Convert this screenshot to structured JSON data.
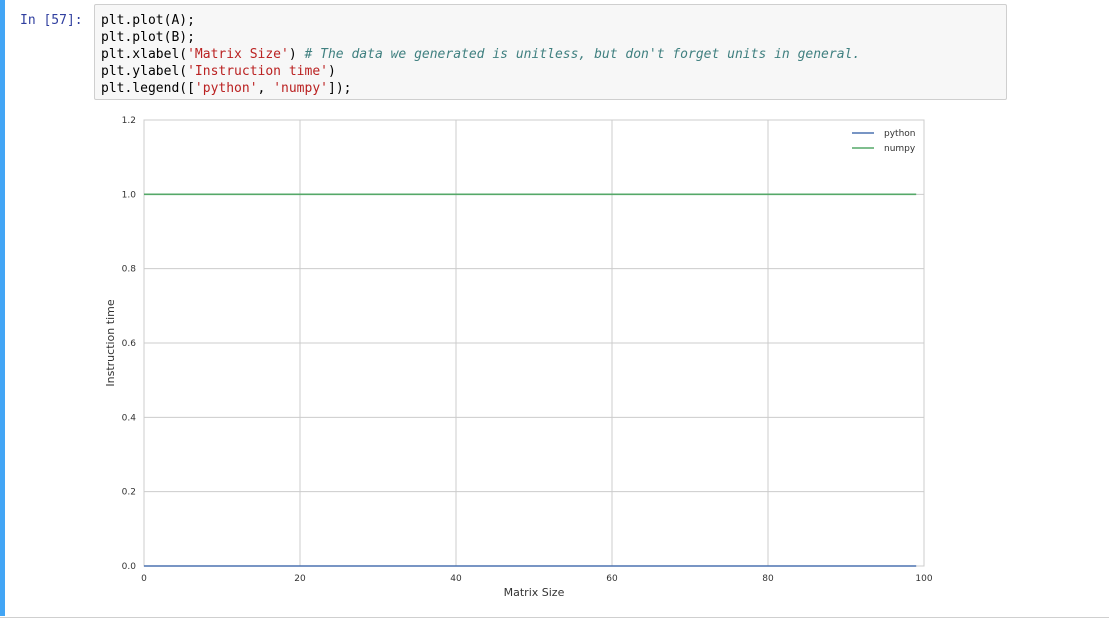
{
  "cell": {
    "prompt": "In [57]:",
    "code_lines": [
      [
        {
          "t": "plt.plot(A);",
          "k": "plain"
        }
      ],
      [
        {
          "t": "plt.plot(B);",
          "k": "plain"
        }
      ],
      [
        {
          "t": "plt.xlabel(",
          "k": "plain"
        },
        {
          "t": "'Matrix Size'",
          "k": "str"
        },
        {
          "t": ") ",
          "k": "plain"
        },
        {
          "t": "# The data we generated is unitless, but don't forget units in general.",
          "k": "com"
        }
      ],
      [
        {
          "t": "plt.ylabel(",
          "k": "plain"
        },
        {
          "t": "'Instruction time'",
          "k": "str"
        },
        {
          "t": ")",
          "k": "plain"
        }
      ],
      [
        {
          "t": "plt.legend([",
          "k": "plain"
        },
        {
          "t": "'python'",
          "k": "str"
        },
        {
          "t": ", ",
          "k": "plain"
        },
        {
          "t": "'numpy'",
          "k": "str"
        },
        {
          "t": "]);",
          "k": "plain"
        }
      ]
    ]
  },
  "colors": {
    "cell_accent": "#42a5f5",
    "prompt": "#303f9f",
    "string": "#ba2121",
    "comment": "#408080"
  },
  "chart_data": {
    "type": "line",
    "title": "",
    "xlabel": "Matrix Size",
    "ylabel": "Instruction time",
    "xlim": [
      0,
      100
    ],
    "ylim": [
      0,
      1.2
    ],
    "xticks": [
      0,
      20,
      40,
      60,
      80,
      100
    ],
    "xtick_labels": [
      "0",
      "20",
      "40",
      "60",
      "80",
      "100"
    ],
    "yticks": [
      0.0,
      0.2,
      0.4,
      0.6,
      0.8,
      1.0,
      1.2
    ],
    "ytick_labels": [
      "0.0",
      "0.2",
      "0.4",
      "0.6",
      "0.8",
      "1.0",
      "1.2"
    ],
    "grid": true,
    "legend_position": "top-right",
    "series": [
      {
        "name": "python",
        "color": "#4c72b0",
        "x": [
          0,
          99
        ],
        "y": [
          0,
          0
        ]
      },
      {
        "name": "numpy",
        "color": "#55a868",
        "x": [
          0,
          99
        ],
        "y": [
          1,
          1
        ]
      }
    ]
  }
}
